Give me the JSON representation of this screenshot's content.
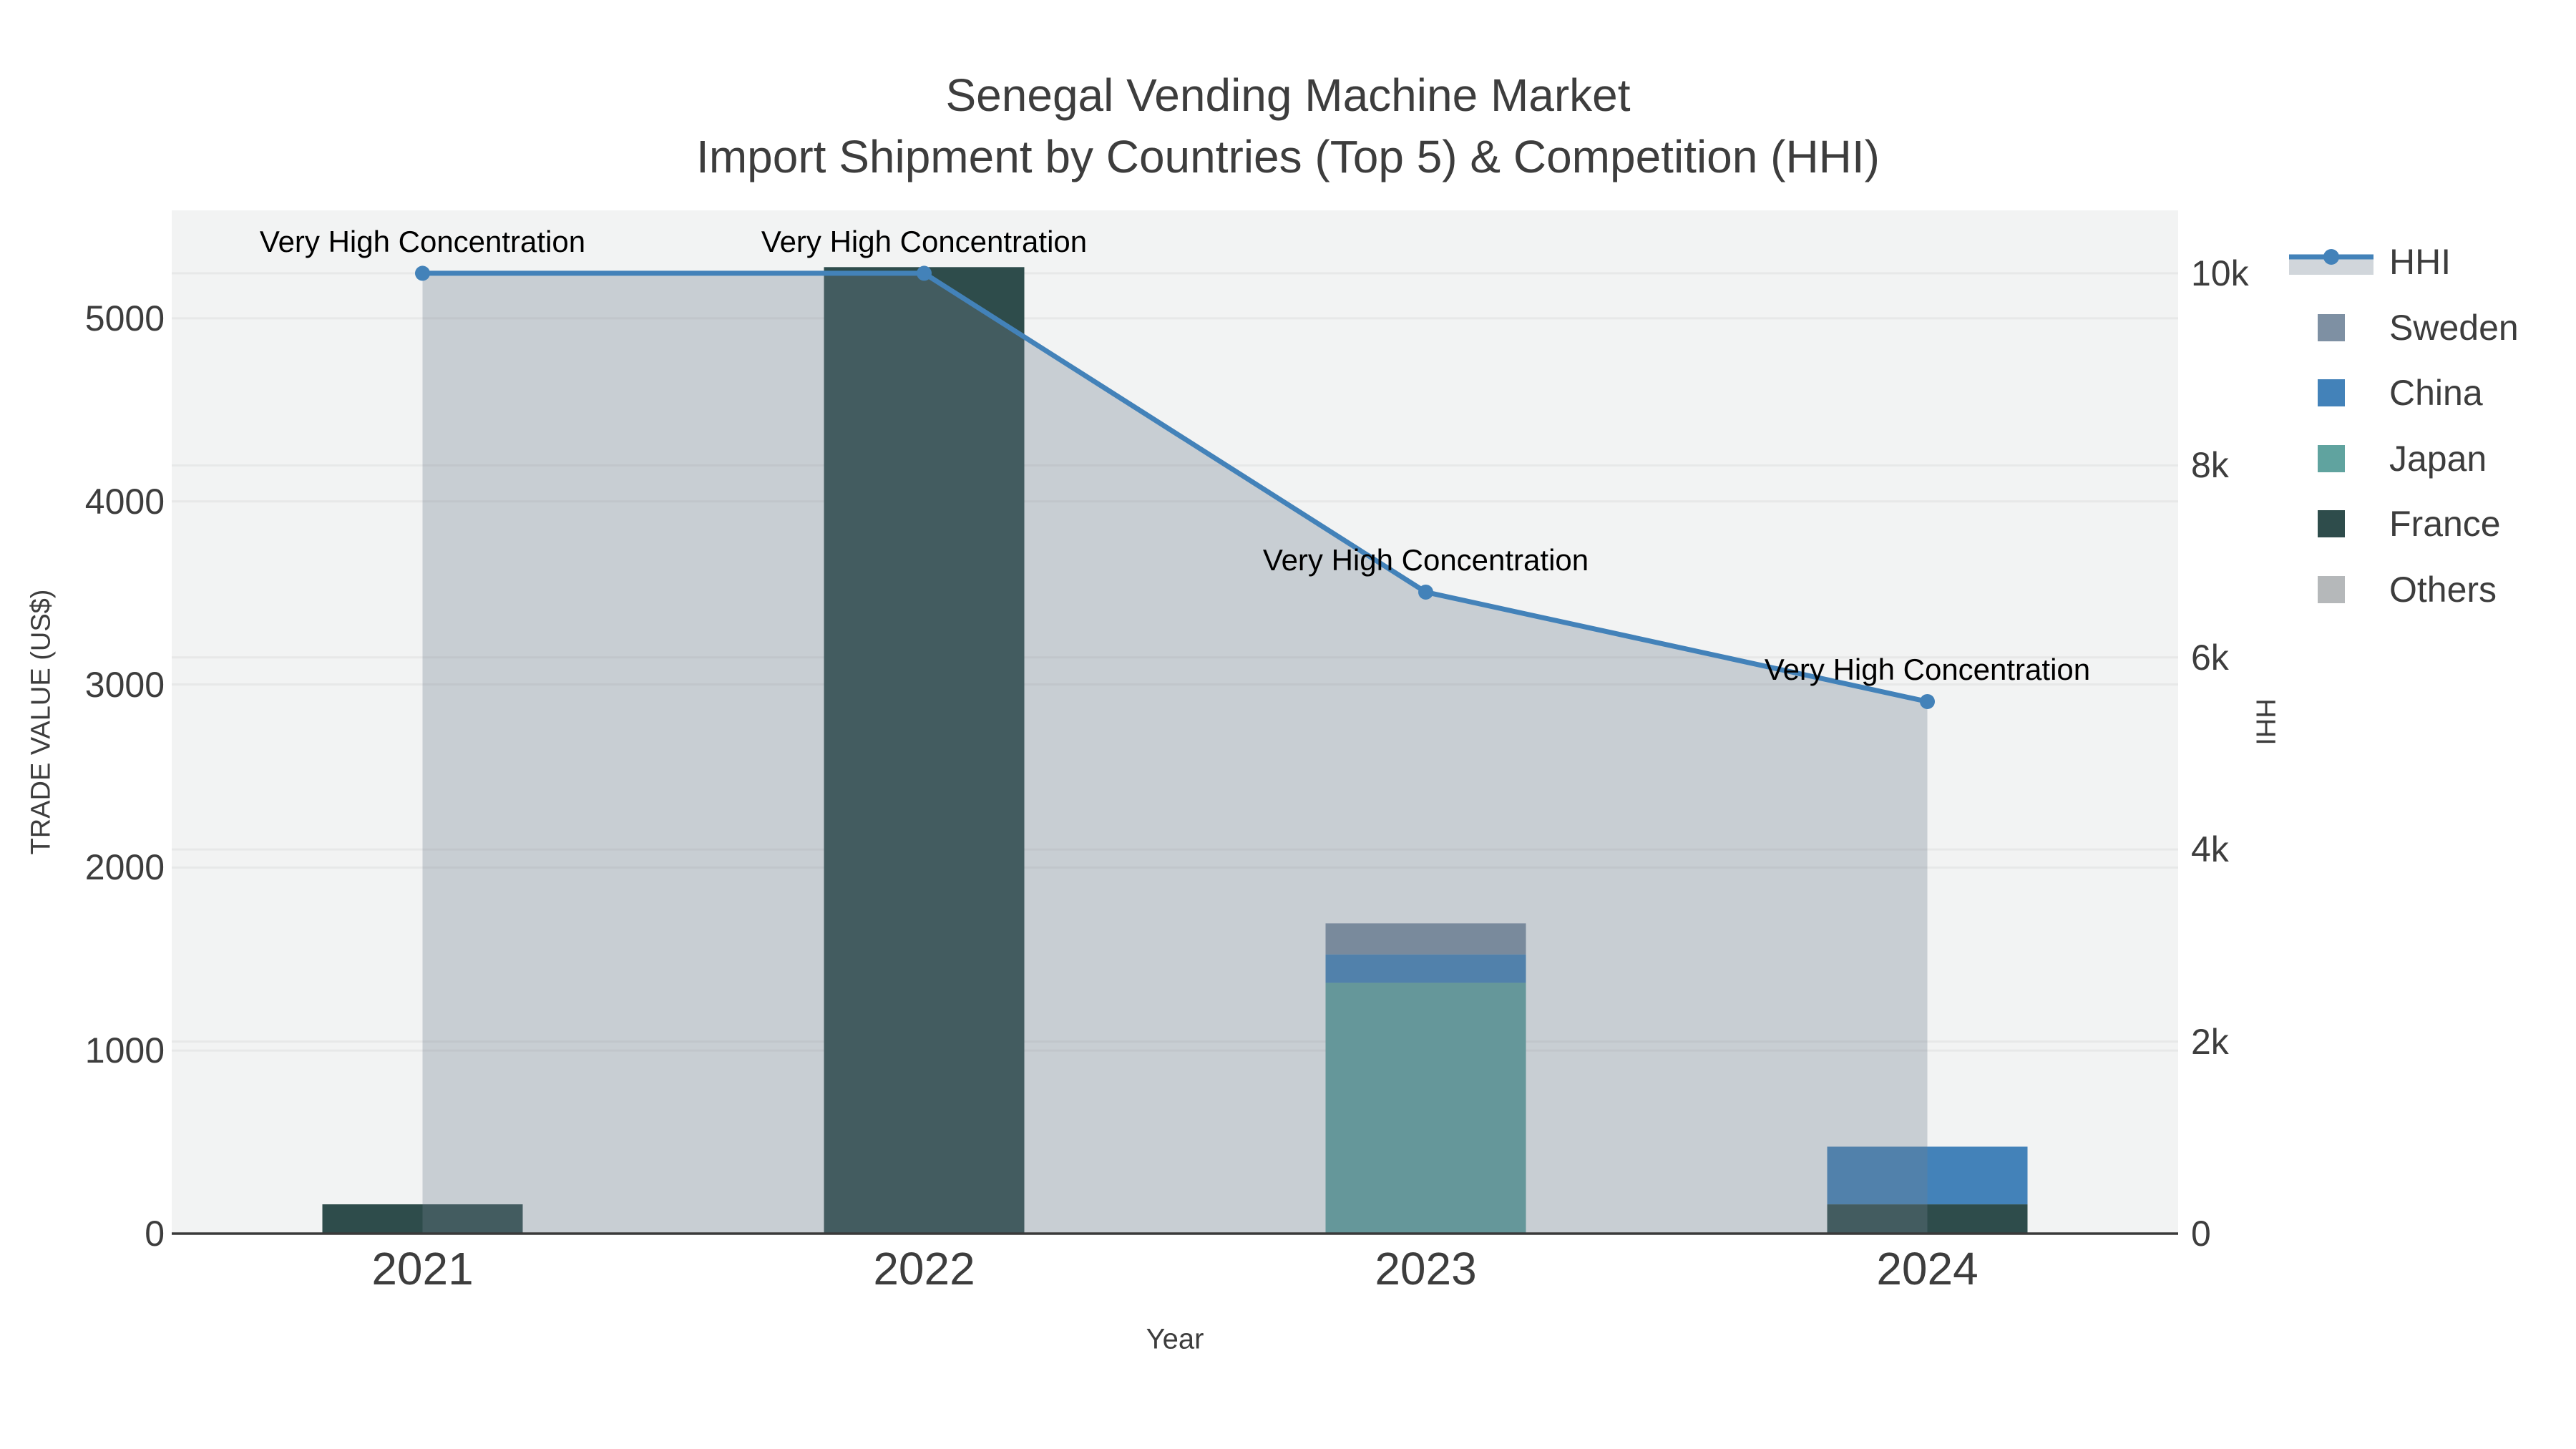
{
  "title": {
    "line1": "Senegal Vending Machine Market",
    "line2": "Import Shipment by Countries (Top 5) & Competition (HHI)"
  },
  "colors": {
    "background": "#ffffff",
    "plot_bg": "#f2f3f3",
    "grid": "#e7e8e8",
    "axis_line": "#3a3a3a",
    "text": "#3d3d3d",
    "annotation_text": "#000000"
  },
  "chart_data": {
    "type": "combo-stacked-bar-line",
    "categories": [
      "2021",
      "2022",
      "2023",
      "2024"
    ],
    "bar_series": [
      {
        "name": "Sweden",
        "color": "#7e90a3",
        "values": [
          0,
          0,
          170,
          0
        ]
      },
      {
        "name": "China",
        "color": "#4382b9",
        "values": [
          0,
          0,
          155,
          315
        ]
      },
      {
        "name": "Japan",
        "color": "#60a39f",
        "values": [
          0,
          0,
          1370,
          0
        ]
      },
      {
        "name": "France",
        "color": "#2e4c4b",
        "values": [
          160,
          5280,
          0,
          160
        ]
      },
      {
        "name": "Others",
        "color": "#b5b8ba",
        "values": [
          0,
          0,
          0,
          0
        ]
      }
    ],
    "stack_order_bottom_to_top": [
      "France",
      "Japan",
      "China",
      "Sweden",
      "Others"
    ],
    "line_series": {
      "name": "HHI",
      "color": "#4382b9",
      "fill_color": "rgba(112,128,144,0.32)",
      "values": [
        10000,
        10000,
        6680,
        5540
      ]
    },
    "annotations": [
      {
        "text": "Very High Concentration",
        "category": "2021",
        "hhi": 10000
      },
      {
        "text": "Very High Concentration",
        "category": "2022",
        "hhi": 10000
      },
      {
        "text": "Very High Concentration",
        "category": "2023",
        "hhi": 6680
      },
      {
        "text": "Very High Concentration",
        "category": "2024",
        "hhi": 5540
      }
    ],
    "x_axis": {
      "title": "Year",
      "ticks": [
        "2021",
        "2022",
        "2023",
        "2024"
      ]
    },
    "y_axis_left": {
      "title": "TRADE VALUE (US$)",
      "ticks": [
        "0",
        "1000",
        "2000",
        "3000",
        "4000",
        "5000"
      ],
      "tick_values": [
        0,
        1000,
        2000,
        3000,
        4000,
        5000
      ],
      "range": [
        0,
        5590
      ]
    },
    "y_axis_right": {
      "title": "HHI",
      "ticks": [
        "0",
        "2k",
        "4k",
        "6k",
        "8k",
        "10k"
      ],
      "tick_values": [
        0,
        2000,
        4000,
        6000,
        8000,
        10000
      ],
      "range": [
        0,
        10655
      ]
    },
    "legend": [
      "HHI",
      "Sweden",
      "China",
      "Japan",
      "France",
      "Others"
    ],
    "legend_position": "right",
    "grid": true
  }
}
